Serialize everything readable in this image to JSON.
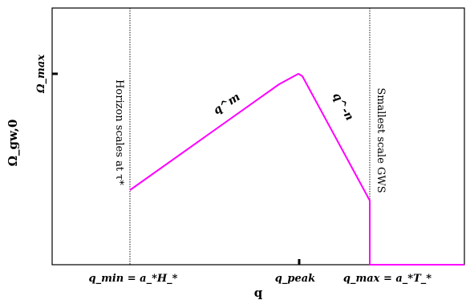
{
  "chart_data": {
    "type": "line",
    "title": "",
    "xlabel": "q",
    "ylabel": "Ω_gw,0",
    "scale": "log-log (schematic, no numeric ticks)",
    "grid": false,
    "legend": "none",
    "x_ticks": [
      {
        "key": "q_min",
        "label": "q_min = a_*H_*"
      },
      {
        "key": "q_peak",
        "label": "q_peak"
      },
      {
        "key": "q_max",
        "label": "q_max = a_*T_*"
      }
    ],
    "y_ticks": [
      {
        "key": "omega_max",
        "label": "Ω_max"
      }
    ],
    "vertical_markers": [
      {
        "at": "q_min",
        "style": "dotted",
        "label": "Horizon scales at τ*"
      },
      {
        "at": "q_max",
        "style": "dotted",
        "label": "Smallest scale GWS"
      }
    ],
    "series": [
      {
        "color": "#ff00ff",
        "segments": [
          {
            "from": "q_min",
            "to": "q_peak",
            "trend": "rising power law",
            "label": "q^m"
          },
          {
            "from": "q_peak",
            "to": "q_max",
            "trend": "falling power law",
            "label": "q^-n"
          },
          {
            "from": "q_max",
            "to": "beyond",
            "trend": "abrupt cutoff to zero"
          }
        ]
      }
    ]
  }
}
